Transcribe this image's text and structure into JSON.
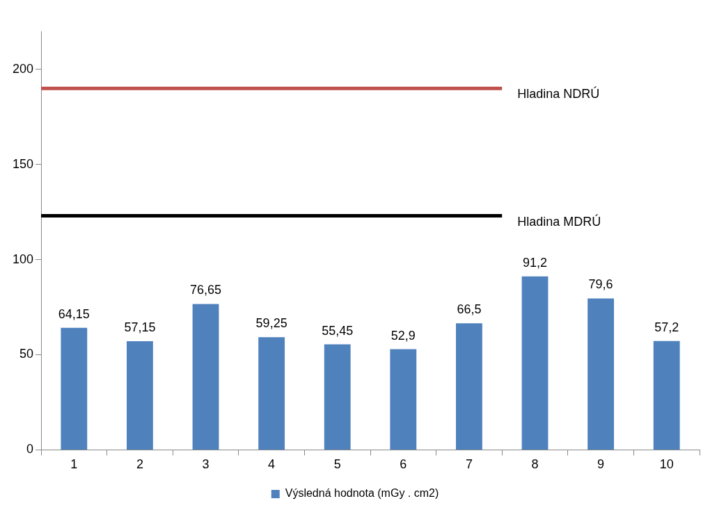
{
  "chart_data": {
    "type": "bar",
    "categories": [
      "1",
      "2",
      "3",
      "4",
      "5",
      "6",
      "7",
      "8",
      "9",
      "10"
    ],
    "series": [
      {
        "name": "Výsledná hodnota (mGy . cm2)",
        "color": "#4f81bd",
        "values": [
          64.15,
          57.15,
          76.65,
          59.25,
          55.45,
          52.9,
          66.5,
          91.2,
          79.6,
          57.2
        ],
        "value_labels": [
          "64,15",
          "57,15",
          "76,65",
          "59,25",
          "55,45",
          "52,9",
          "66,5",
          "91,2",
          "79,6",
          "57,2"
        ]
      }
    ],
    "ylim": [
      0,
      220
    ],
    "yticks": [
      0,
      50,
      100,
      150,
      200
    ],
    "grid": false,
    "legend": "bottom",
    "ref_lines": [
      {
        "axis": "y",
        "value": 190,
        "label": "Hladina NDRÚ",
        "color": "#c0504d"
      },
      {
        "axis": "y",
        "value": 123,
        "label": "Hladina MDRÚ",
        "color": "#000000"
      }
    ]
  }
}
